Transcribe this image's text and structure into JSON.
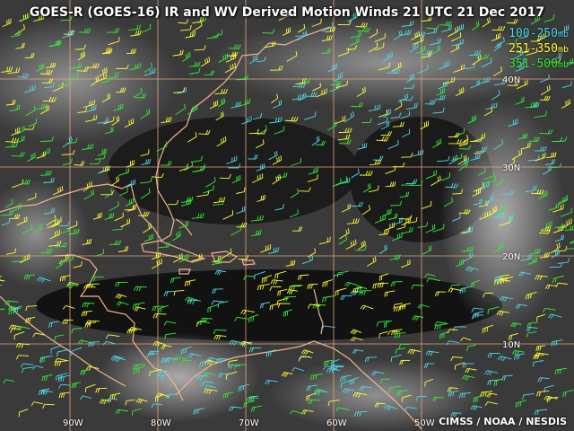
{
  "title": "GOES-R (GOES-16) IR and WV Derived Motion Winds  21 UTC  21 Dec 2017",
  "legend": [
    {
      "range": "100-250",
      "unit": "mb",
      "color": "#4fd9e8"
    },
    {
      "range": "251-350",
      "unit": "mb",
      "color": "#ffff33"
    },
    {
      "range": "351-500",
      "unit": "mb",
      "color": "#33ee33"
    }
  ],
  "credit": "CIMSS / NOAA / NESDIS",
  "lat_labels": [
    "40N",
    "30N",
    "20N",
    "10N"
  ],
  "lon_labels": [
    "90W",
    "80W",
    "70W",
    "60W",
    "50W"
  ],
  "colors": {
    "grid": "#e8a27a",
    "coast": "#f2b48e",
    "background_dark": "#141414"
  }
}
